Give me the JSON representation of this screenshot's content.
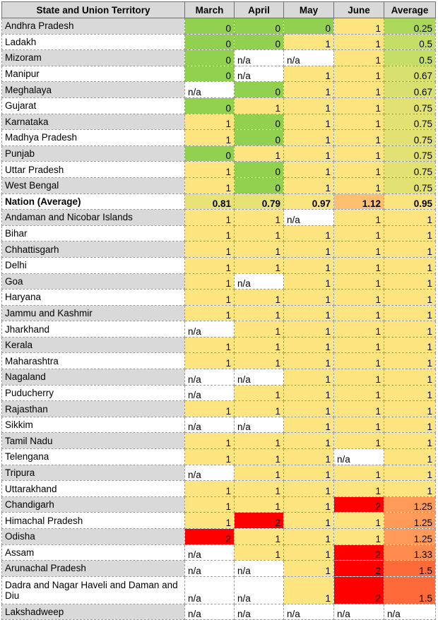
{
  "chart_data": {
    "type": "table",
    "columns": [
      "State and Union Territory",
      "March",
      "April",
      "May",
      "June",
      "Average"
    ],
    "rows": [
      {
        "name": "Andhra Pradesh",
        "values": [
          "0",
          "0",
          "0",
          "1",
          "0.25"
        ]
      },
      {
        "name": "Ladakh",
        "values": [
          "0",
          "0",
          "1",
          "1",
          "0.5"
        ]
      },
      {
        "name": "Mizoram",
        "values": [
          "0",
          "n/a",
          "n/a",
          "1",
          "0.5"
        ]
      },
      {
        "name": "Manipur",
        "values": [
          "0",
          "n/a",
          "1",
          "1",
          "0.67"
        ]
      },
      {
        "name": "Meghalaya",
        "values": [
          "n/a",
          "0",
          "1",
          "1",
          "0.67"
        ]
      },
      {
        "name": "Gujarat",
        "values": [
          "0",
          "1",
          "1",
          "1",
          "0.75"
        ]
      },
      {
        "name": "Karnataka",
        "values": [
          "1",
          "0",
          "1",
          "1",
          "0.75"
        ]
      },
      {
        "name": "Madhya Pradesh",
        "values": [
          "1",
          "0",
          "1",
          "1",
          "0.75"
        ]
      },
      {
        "name": "Punjab",
        "values": [
          "0",
          "1",
          "1",
          "1",
          "0.75"
        ]
      },
      {
        "name": "Uttar Pradesh",
        "values": [
          "1",
          "0",
          "1",
          "1",
          "0.75"
        ]
      },
      {
        "name": "West Bengal",
        "values": [
          "1",
          "0",
          "1",
          "1",
          "0.75"
        ]
      },
      {
        "name": "Nation (Average)",
        "values": [
          "0.81",
          "0.79",
          "0.97",
          "1.12",
          "0.95"
        ],
        "bold": true
      },
      {
        "name": "Andaman and Nicobar Islands",
        "values": [
          "1",
          "1",
          "n/a",
          "1",
          "1"
        ]
      },
      {
        "name": "Bihar",
        "values": [
          "1",
          "1",
          "1",
          "1",
          "1"
        ]
      },
      {
        "name": "Chhattisgarh",
        "values": [
          "1",
          "1",
          "1",
          "1",
          "1"
        ]
      },
      {
        "name": "Delhi",
        "values": [
          "1",
          "1",
          "1",
          "1",
          "1"
        ]
      },
      {
        "name": "Goa",
        "values": [
          "1",
          "n/a",
          "1",
          "1",
          "1"
        ]
      },
      {
        "name": "Haryana",
        "values": [
          "1",
          "1",
          "1",
          "1",
          "1"
        ]
      },
      {
        "name": "Jammu and Kashmir",
        "values": [
          "1",
          "1",
          "1",
          "1",
          "1"
        ]
      },
      {
        "name": "Jharkhand",
        "values": [
          "n/a",
          "1",
          "1",
          "1",
          "1"
        ]
      },
      {
        "name": "Kerala",
        "values": [
          "1",
          "1",
          "1",
          "1",
          "1"
        ]
      },
      {
        "name": "Maharashtra",
        "values": [
          "1",
          "1",
          "1",
          "1",
          "1"
        ]
      },
      {
        "name": "Nagaland",
        "values": [
          "n/a",
          "n/a",
          "1",
          "1",
          "1"
        ]
      },
      {
        "name": "Puducherry",
        "values": [
          "n/a",
          "1",
          "1",
          "1",
          "1"
        ]
      },
      {
        "name": "Rajasthan",
        "values": [
          "1",
          "1",
          "1",
          "1",
          "1"
        ]
      },
      {
        "name": "Sikkim",
        "values": [
          "n/a",
          "n/a",
          "1",
          "1",
          "1"
        ]
      },
      {
        "name": "Tamil Nadu",
        "values": [
          "1",
          "1",
          "1",
          "1",
          "1"
        ]
      },
      {
        "name": "Telengana",
        "values": [
          "1",
          "1",
          "1",
          "n/a",
          "1"
        ]
      },
      {
        "name": "Tripura",
        "values": [
          "n/a",
          "1",
          "1",
          "1",
          "1"
        ]
      },
      {
        "name": "Uttarakhand",
        "values": [
          "1",
          "1",
          "1",
          "1",
          "1"
        ]
      },
      {
        "name": "Chandigarh",
        "values": [
          "1",
          "1",
          "1",
          "2",
          "1.25"
        ]
      },
      {
        "name": "Himachal Pradesh",
        "values": [
          "1",
          "2",
          "1",
          "1",
          "1.25"
        ]
      },
      {
        "name": "Odisha",
        "values": [
          "2",
          "1",
          "1",
          "1",
          "1.25"
        ]
      },
      {
        "name": "Assam",
        "values": [
          "n/a",
          "1",
          "1",
          "2",
          "1.33"
        ]
      },
      {
        "name": "Arunachal Pradesh",
        "values": [
          "n/a",
          "n/a",
          "1",
          "2",
          "1.5"
        ]
      },
      {
        "name": "Dadra and Nagar Haveli and Daman and Diu",
        "values": [
          "n/a",
          "n/a",
          "1",
          "2",
          "1.5"
        ]
      },
      {
        "name": "Lakshadweep",
        "values": [
          "n/a",
          "n/a",
          "n/a",
          "n/a",
          "n/a"
        ]
      }
    ],
    "colors": {
      "header_bg": "#d9d9d9",
      "name_shade": "#d9d9d9",
      "name_plain": "#ffffff",
      "na_bg": "#ffffff",
      "scale": [
        {
          "value": 0,
          "color": "#92d050"
        },
        {
          "value": 0.5,
          "color": "#c4de66"
        },
        {
          "value": 1,
          "color": "#ffe57f"
        },
        {
          "value": 1.12,
          "color": "#ffbe70"
        },
        {
          "value": 1.25,
          "color": "#ff9a58"
        },
        {
          "value": 1.5,
          "color": "#ff6a3a"
        },
        {
          "value": 2,
          "color": "#ff0000"
        }
      ]
    }
  }
}
